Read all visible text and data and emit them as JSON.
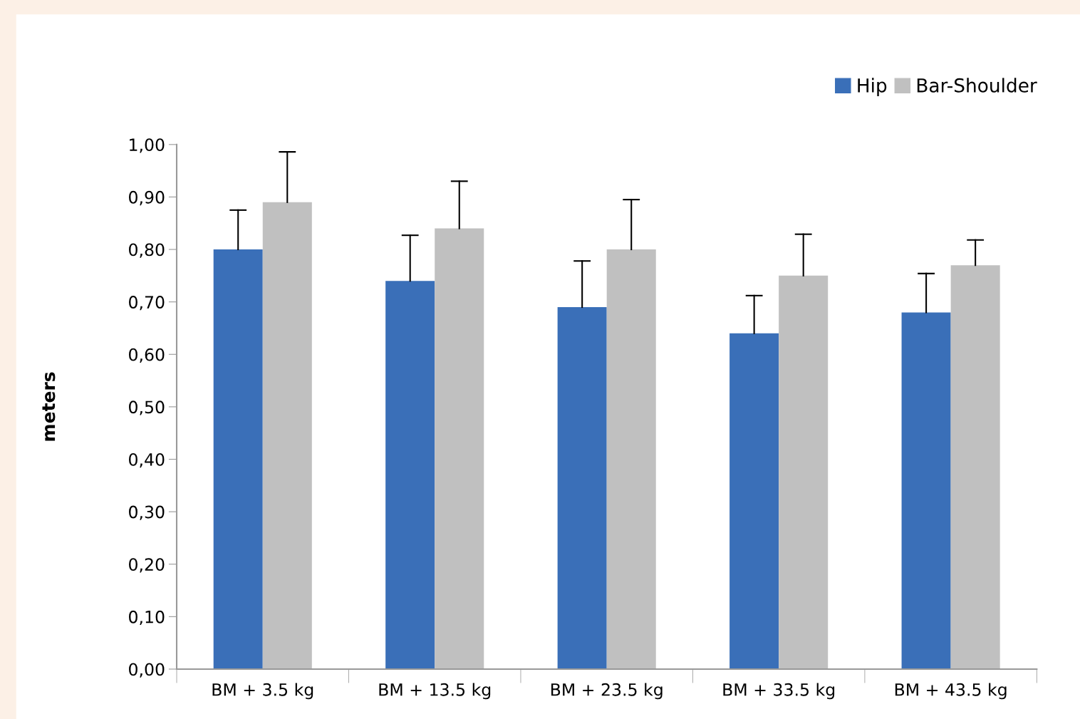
{
  "chart_data": {
    "type": "bar",
    "ylabel": "meters",
    "categories": [
      "BM + 3.5 kg",
      "BM + 13.5 kg",
      "BM + 23.5 kg",
      "BM + 33.5 kg",
      "BM + 43.5 kg"
    ],
    "series": [
      {
        "name": "Hip",
        "color": "#3a6fb8",
        "values": [
          0.8,
          0.74,
          0.69,
          0.64,
          0.68
        ],
        "errors": [
          [
            0.8,
            0.875
          ],
          [
            0.74,
            0.827
          ],
          [
            0.69,
            0.778
          ],
          [
            0.64,
            0.712
          ],
          [
            0.68,
            0.754
          ]
        ]
      },
      {
        "name": "Bar-Shoulder",
        "color": "#c0c0c0",
        "values": [
          0.89,
          0.84,
          0.8,
          0.75,
          0.77
        ],
        "errors": [
          [
            0.89,
            0.986
          ],
          [
            0.84,
            0.93
          ],
          [
            0.8,
            0.895
          ],
          [
            0.75,
            0.829
          ],
          [
            0.77,
            0.818
          ]
        ]
      }
    ],
    "ylim": [
      0,
      1
    ],
    "yticks": [
      {
        "value": 0,
        "label": "0,00"
      },
      {
        "value": 0.1,
        "label": "0,10"
      },
      {
        "value": 0.2,
        "label": "0,20"
      },
      {
        "value": 0.3,
        "label": "0,30"
      },
      {
        "value": 0.4,
        "label": "0,40"
      },
      {
        "value": 0.5,
        "label": "0,50"
      },
      {
        "value": 0.6,
        "label": "0,60"
      },
      {
        "value": 0.7,
        "label": "0,70"
      },
      {
        "value": 0.8,
        "label": "0,80"
      },
      {
        "value": 0.9,
        "label": "0,90"
      },
      {
        "value": 1,
        "label": "1,00"
      }
    ],
    "grid": false,
    "legend": "top right"
  }
}
